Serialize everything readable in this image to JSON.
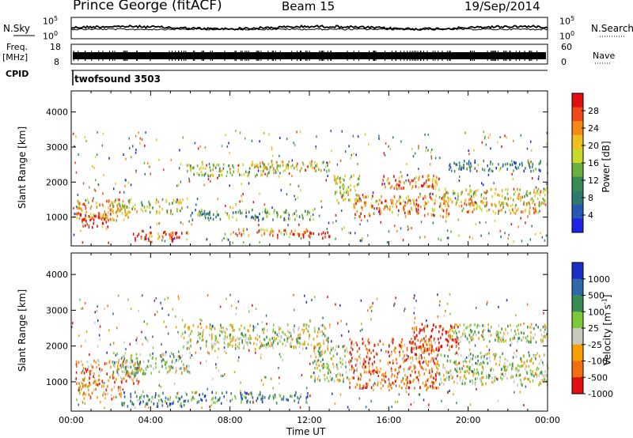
{
  "header": {
    "station": "Prince George (fitACF)",
    "beam": "Beam 15",
    "date": "19/Sep/2014"
  },
  "noise_panel": {
    "left_label": "N.Sky",
    "right_label": "N.Search",
    "tick_top": "10^5",
    "tick_bottom": "10^0",
    "series_colors": {
      "search": "#000000",
      "sky": "#000000"
    }
  },
  "freq_panel": {
    "left_label_line1": "Freq.",
    "left_label_line2": "[MHz]",
    "right_label": "Nave",
    "left_ticks": [
      "18",
      "8"
    ],
    "right_ticks": [
      "60",
      "0"
    ]
  },
  "cpid_panel": {
    "label": "CPID",
    "program": "twofsound 3503"
  },
  "chart_data": [
    {
      "type": "heatmap",
      "name": "power",
      "ylabel": "Slant Range [km]",
      "ylim": [
        180,
        4600
      ],
      "yticks": [
        "1000",
        "2000",
        "3000",
        "4000"
      ],
      "xlim_hours": [
        0,
        24
      ],
      "colorbar": {
        "label": "Power [dB]",
        "range": [
          0,
          32
        ],
        "ticks": [
          "4",
          "8",
          "12",
          "16",
          "20",
          "24",
          "28"
        ],
        "colors": [
          "#1e24e6",
          "#2659b5",
          "#2f7a6e",
          "#3a8c57",
          "#6ab03e",
          "#c8d82e",
          "#f0c020",
          "#f58a1a",
          "#f04a18",
          "#e01010"
        ]
      },
      "bands": [
        {
          "t": [
            0.2,
            3.0
          ],
          "r": [
            900,
            1500
          ],
          "level": 0.7
        },
        {
          "t": [
            0.4,
            2.0
          ],
          "r": [
            700,
            1100
          ],
          "level": 0.95
        },
        {
          "t": [
            2.0,
            5.6
          ],
          "r": [
            1100,
            1500
          ],
          "level": 0.55
        },
        {
          "t": [
            3.0,
            5.8
          ],
          "r": [
            300,
            600
          ],
          "level": 0.85
        },
        {
          "t": [
            5.8,
            10.5
          ],
          "r": [
            2150,
            2500
          ],
          "level": 0.5
        },
        {
          "t": [
            9.0,
            13.0
          ],
          "r": [
            2300,
            2600
          ],
          "level": 0.6
        },
        {
          "t": [
            6.0,
            12.0
          ],
          "r": [
            900,
            1200
          ],
          "level": 0.35
        },
        {
          "t": [
            8.0,
            12.0
          ],
          "r": [
            450,
            650
          ],
          "level": 0.7
        },
        {
          "t": [
            11.0,
            13.0
          ],
          "r": [
            380,
            560
          ],
          "level": 0.95
        },
        {
          "t": [
            13.2,
            14.5
          ],
          "r": [
            1400,
            2200
          ],
          "level": 0.5
        },
        {
          "t": [
            14.2,
            19.0
          ],
          "r": [
            1000,
            1600
          ],
          "level": 0.75
        },
        {
          "t": [
            15.5,
            18.5
          ],
          "r": [
            1800,
            2200
          ],
          "level": 0.8
        },
        {
          "t": [
            18.5,
            24.0
          ],
          "r": [
            1300,
            1800
          ],
          "level": 0.6
        },
        {
          "t": [
            19.0,
            24.0
          ],
          "r": [
            2300,
            2600
          ],
          "level": 0.3
        },
        {
          "t": [
            19.5,
            23.5
          ],
          "r": [
            1100,
            1400
          ],
          "level": 0.7
        }
      ]
    },
    {
      "type": "heatmap",
      "name": "velocity",
      "ylabel": "Slant Range [km]",
      "ylim": [
        180,
        4600
      ],
      "yticks": [
        "1000",
        "2000",
        "3000",
        "4000"
      ],
      "xlim_hours": [
        0,
        24
      ],
      "xticks": [
        "00:00",
        "04:00",
        "08:00",
        "12:00",
        "16:00",
        "20:00",
        "00:00"
      ],
      "xlabel": "Time UT",
      "colorbar": {
        "label": "Velocity [m s^-1]",
        "ticks": [
          "1000",
          "500",
          "100",
          "25",
          "-25",
          "-100",
          "-500",
          "-1000"
        ],
        "colors": [
          "#1e2ec8",
          "#2f6aa8",
          "#3a8c57",
          "#7fc83a",
          "#c8c8c0",
          "#f5a000",
          "#f07010",
          "#e01010"
        ]
      },
      "bands": [
        {
          "t": [
            0.2,
            3.5
          ],
          "r": [
            900,
            1600
          ],
          "level": 0.75
        },
        {
          "t": [
            0.3,
            2.5
          ],
          "r": [
            500,
            900
          ],
          "level": 0.7
        },
        {
          "t": [
            2.0,
            6.0
          ],
          "r": [
            1200,
            1800
          ],
          "level": 0.45
        },
        {
          "t": [
            2.5,
            6.0
          ],
          "r": [
            300,
            700
          ],
          "level": 0.3
        },
        {
          "t": [
            5.5,
            13.0
          ],
          "r": [
            1900,
            2600
          ],
          "level": 0.5
        },
        {
          "t": [
            6.0,
            12.0
          ],
          "r": [
            400,
            700
          ],
          "level": 0.3
        },
        {
          "t": [
            12.0,
            14.0
          ],
          "r": [
            1000,
            2000
          ],
          "level": 0.5
        },
        {
          "t": [
            14.0,
            18.5
          ],
          "r": [
            800,
            2200
          ],
          "level": 0.8
        },
        {
          "t": [
            17.0,
            19.5
          ],
          "r": [
            1800,
            2600
          ],
          "level": 0.95
        },
        {
          "t": [
            18.5,
            24.0
          ],
          "r": [
            900,
            1800
          ],
          "level": 0.5
        },
        {
          "t": [
            19.0,
            24.0
          ],
          "r": [
            2100,
            2600
          ],
          "level": 0.5
        }
      ]
    }
  ]
}
